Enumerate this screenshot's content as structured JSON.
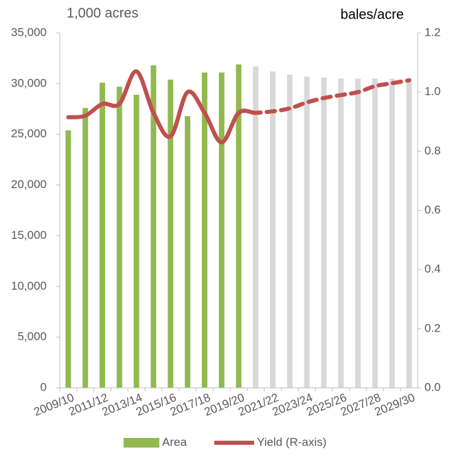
{
  "chart_data": {
    "type": "bar_line",
    "y_label": "1,000 acres",
    "y2_label": "bales/acre",
    "categories": [
      "2009/10",
      null,
      "2011/12",
      null,
      "2013/14",
      null,
      "2015/16",
      null,
      "2017/18",
      null,
      "2019/20",
      null,
      "2021/22",
      null,
      "2023/24",
      null,
      "2025/26",
      null,
      "2027/28",
      null,
      "2029/30"
    ],
    "series": [
      {
        "name": "Area",
        "type": "bar",
        "color": "#92b850",
        "bar_colors": [
          "#92b850",
          "#92b850",
          "#92b850",
          "#92b850",
          "#92b850",
          "#92b850",
          "#92b850",
          "#92b850",
          "#92b850",
          "#92b850",
          "#92b850",
          "#d9d9d9",
          "#d9d9d9",
          "#d9d9d9",
          "#d9d9d9",
          "#d9d9d9",
          "#d9d9d9",
          "#d9d9d9",
          "#d9d9d9",
          "#d9d9d9",
          "#d9d9d9"
        ],
        "values": [
          25400,
          27600,
          30100,
          29700,
          28900,
          31800,
          30400,
          26800,
          31100,
          31100,
          31900,
          31700,
          31200,
          30900,
          30700,
          30600,
          30500,
          30500,
          30500,
          30500,
          30500
        ]
      },
      {
        "name": "Yield (R-axis)",
        "type": "line",
        "axis": "y2",
        "color": "#c0504d",
        "dashed_from": 11,
        "values": [
          0.915,
          0.92,
          0.96,
          0.96,
          1.07,
          0.93,
          0.85,
          1.0,
          0.93,
          0.83,
          0.93,
          0.93,
          0.935,
          0.945,
          0.965,
          0.98,
          0.99,
          1.0,
          1.02,
          1.03,
          1.04
        ]
      }
    ],
    "ylim": [
      0,
      35000
    ],
    "yticks": [
      0,
      {
        "value": 5000,
        "label": "5,000"
      },
      {
        "value": 10000,
        "label": "10,000"
      },
      {
        "value": 15000,
        "label": "15,000"
      },
      {
        "value": 20000,
        "label": "20,000"
      },
      {
        "value": 25000,
        "label": "25,000"
      },
      {
        "value": 30000,
        "label": "30,000"
      },
      {
        "value": 35000,
        "label": "35,000"
      }
    ],
    "y2lim": [
      0,
      1.2
    ],
    "y2ticks": [
      {
        "value": 0,
        "label": "0.0"
      },
      0.2,
      0.4,
      0.6,
      0.8,
      {
        "value": 1,
        "label": "1.0"
      },
      1.2
    ],
    "grid": false,
    "legend": "bottom"
  }
}
